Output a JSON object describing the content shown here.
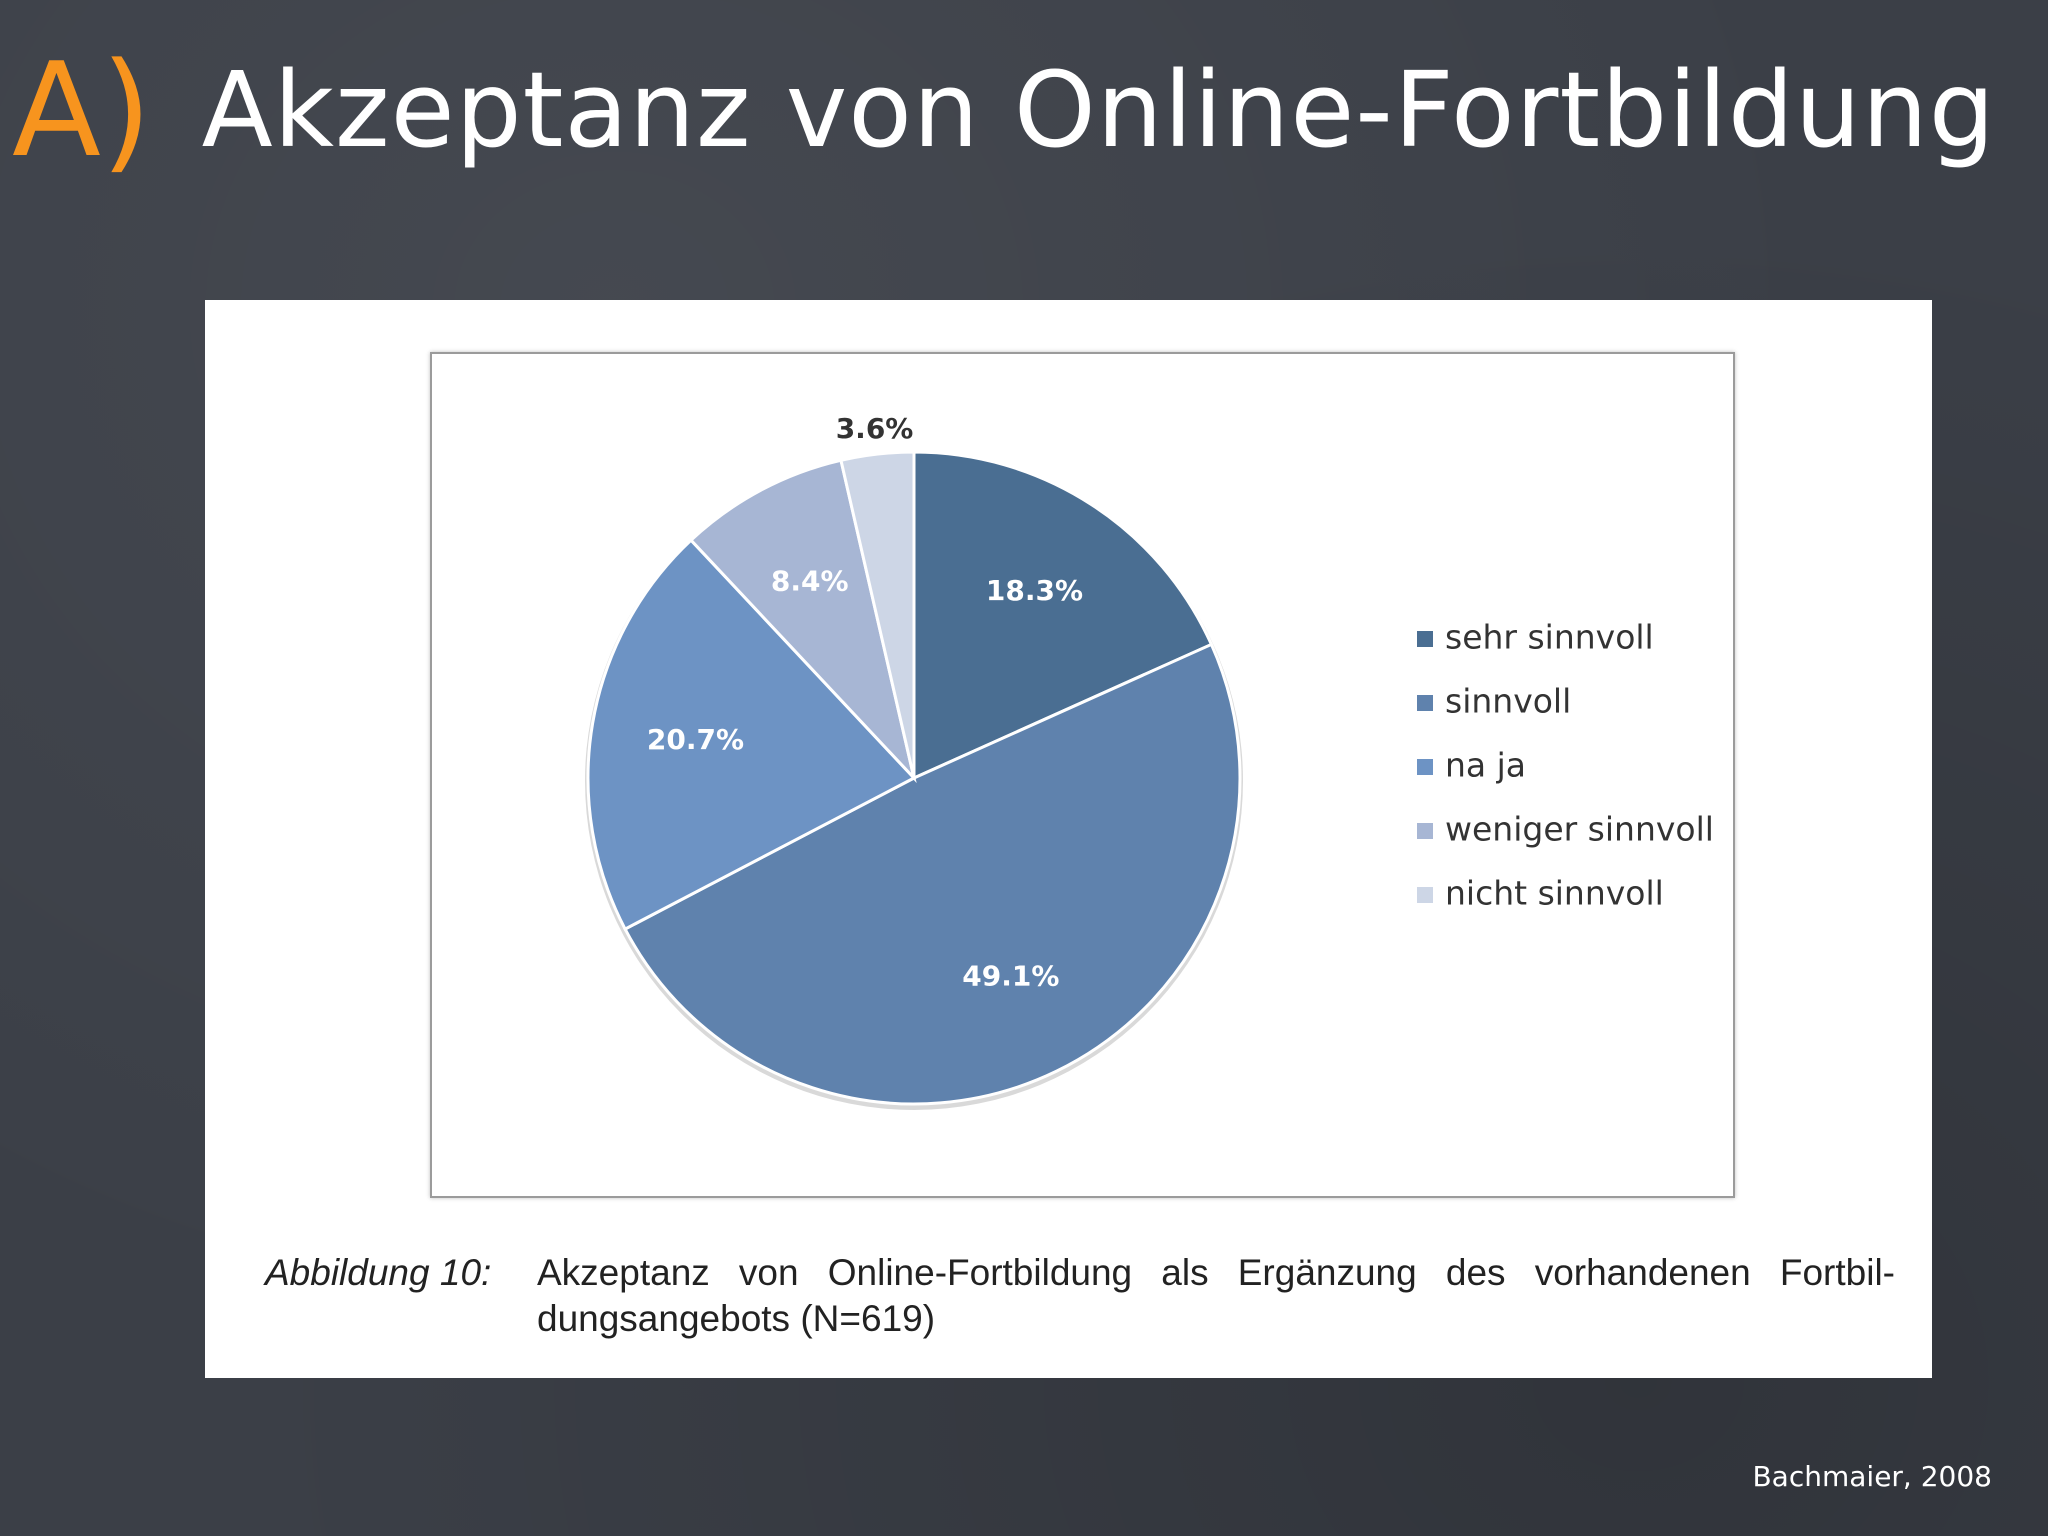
{
  "slide": {
    "title_prefix": "A)",
    "title": "Akzeptanz von Online-Fortbildung",
    "citation": "Bachmaier, 2008"
  },
  "caption": {
    "label": "Abbildung 10:",
    "text": "Akzeptanz von Online-Fortbildung als Ergänzung des vorhandenen Fortbil- dungsangebots (N=619)"
  },
  "chart_data": {
    "type": "pie",
    "title": "",
    "legend_position": "right",
    "slices": [
      {
        "name": "sehr sinnvoll",
        "value": 18.3,
        "label": "18.3%",
        "color": "#4a6e92"
      },
      {
        "name": "sinnvoll",
        "value": 49.1,
        "label": "49.1%",
        "color": "#5f82ad"
      },
      {
        "name": "na ja",
        "value": 20.7,
        "label": "20.7%",
        "color": "#6d93c4"
      },
      {
        "name": "weniger sinnvoll",
        "value": 8.4,
        "label": "8.4%",
        "color": "#a7b6d4"
      },
      {
        "name": "nicht sinnvoll",
        "value": 3.6,
        "label": "3.6%",
        "color": "#cdd6e6"
      }
    ]
  }
}
